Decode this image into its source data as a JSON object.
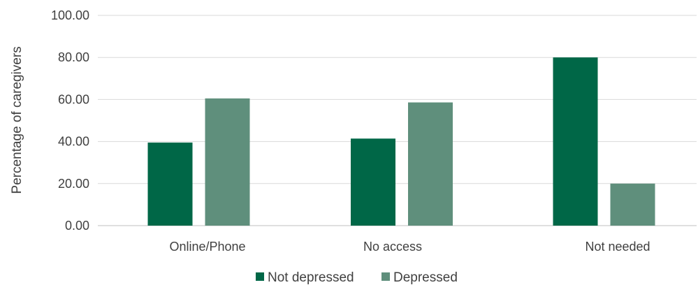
{
  "chart_data": {
    "type": "bar",
    "title": "",
    "xlabel": "",
    "ylabel": "Percentage of caregivers",
    "categories": [
      "Online/Phone",
      "No access",
      "Not needed"
    ],
    "series": [
      {
        "name": "Not depressed",
        "color": "#006747",
        "values": [
          39.5,
          41.4,
          80.0
        ]
      },
      {
        "name": "Depressed",
        "color": "#5F8F7C",
        "values": [
          60.5,
          58.6,
          20.0
        ]
      }
    ],
    "ylim": [
      0,
      100
    ],
    "yticks": [
      "0.00",
      "20.00",
      "40.00",
      "60.00",
      "80.00",
      "100.00"
    ],
    "grid": true,
    "legend_position": "bottom"
  }
}
